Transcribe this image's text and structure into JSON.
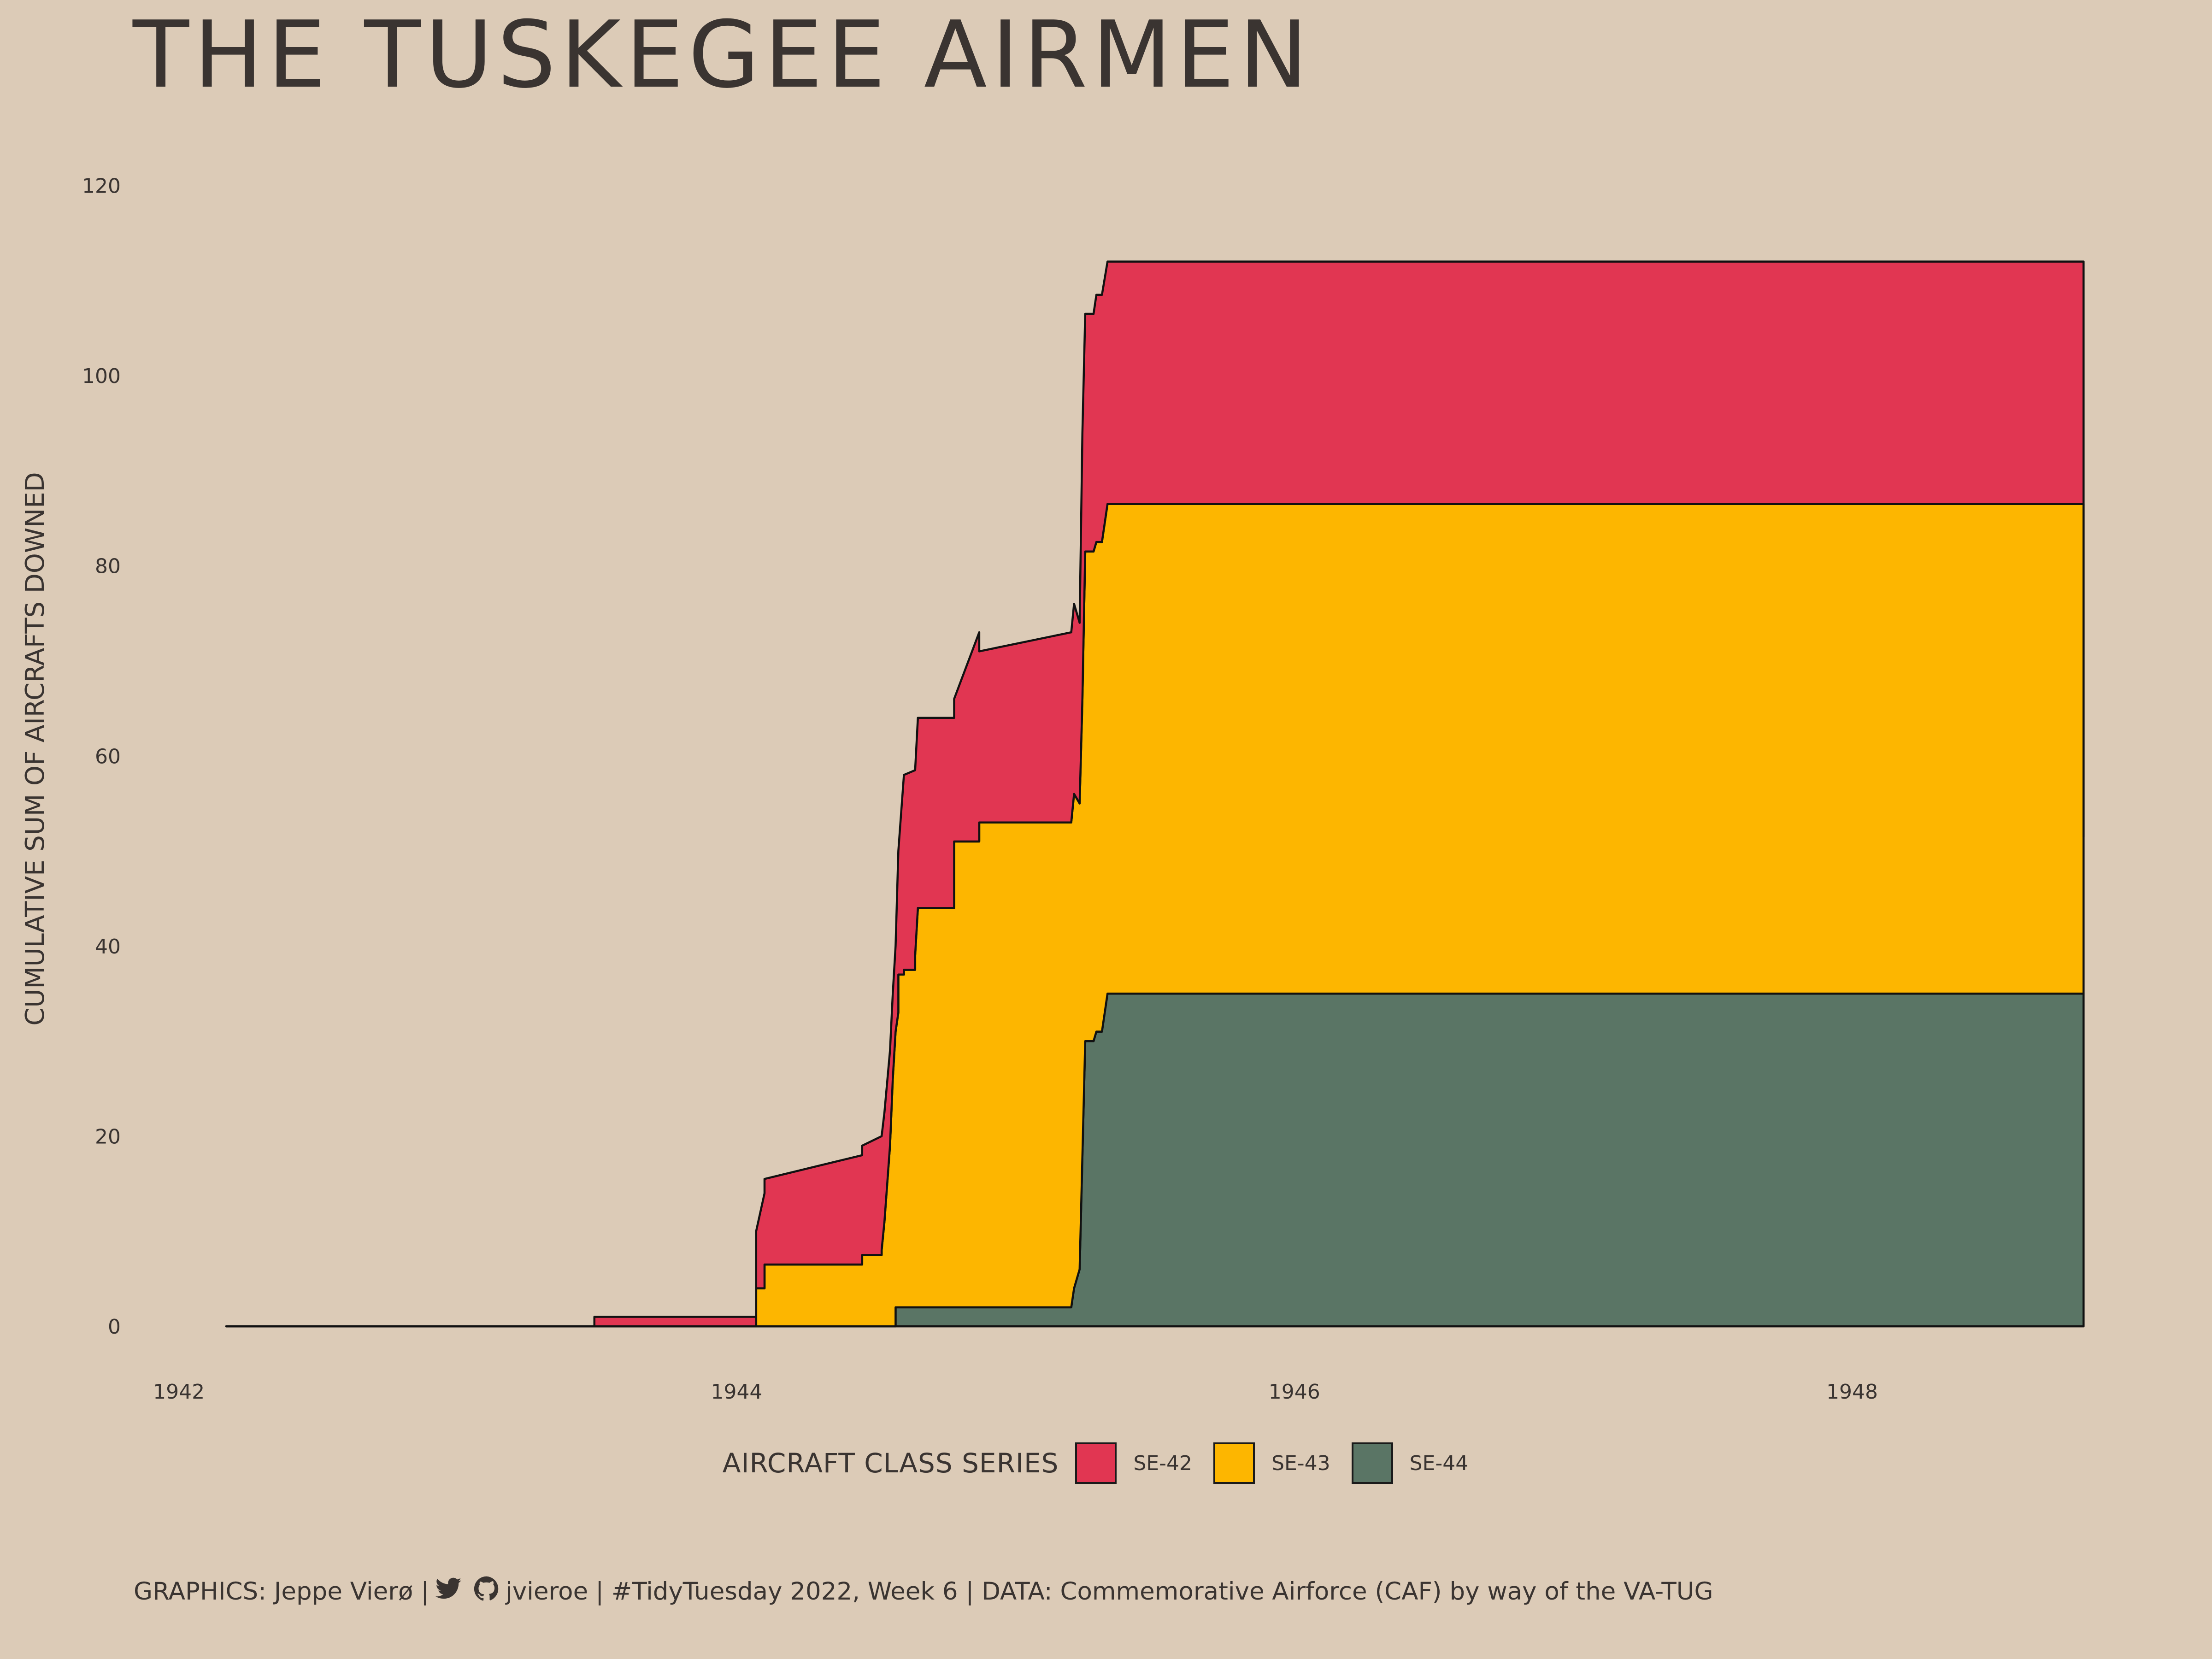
{
  "title": "THE TUSKEGEE AIRMEN",
  "chart_data": {
    "type": "area",
    "stacked": true,
    "step": true,
    "ylabel": "CUMULATIVE SUM OF AIRCRAFTS DOWNED",
    "xlabel": "",
    "xlim": [
      1941.97,
      1948.96
    ],
    "ylim": [
      -3,
      124
    ],
    "x_ticks": [
      1942,
      1944,
      1946,
      1948
    ],
    "y_ticks": [
      0,
      20,
      40,
      60,
      80,
      100,
      120
    ],
    "grid": false,
    "legend_position": "bottom",
    "legend_title": "AIRCRAFT CLASS SERIES",
    "series": [
      {
        "name": "SE-44",
        "color": "#5A7565",
        "points": [
          [
            1942.17,
            0
          ],
          [
            1944.57,
            0
          ],
          [
            1944.57,
            2
          ],
          [
            1944.58,
            2
          ],
          [
            1945.2,
            2
          ],
          [
            1945.21,
            4
          ],
          [
            1945.22,
            5
          ],
          [
            1945.23,
            6
          ],
          [
            1945.25,
            30
          ],
          [
            1945.28,
            30
          ],
          [
            1945.29,
            31
          ],
          [
            1945.31,
            31
          ],
          [
            1945.33,
            35
          ],
          [
            1948.83,
            35
          ]
        ]
      },
      {
        "name": "SE-43",
        "color": "#FDB600",
        "points": [
          [
            1942.17,
            0
          ],
          [
            1944.07,
            0
          ],
          [
            1944.07,
            4
          ],
          [
            1944.1,
            4
          ],
          [
            1944.1,
            6.5
          ],
          [
            1944.45,
            6.5
          ],
          [
            1944.45,
            7.5
          ],
          [
            1944.52,
            7.5
          ],
          [
            1944.52,
            8
          ],
          [
            1944.53,
            11
          ],
          [
            1944.55,
            19
          ],
          [
            1944.56,
            26
          ],
          [
            1944.57,
            31
          ],
          [
            1944.58,
            31
          ],
          [
            1944.58,
            35
          ],
          [
            1944.6,
            35
          ],
          [
            1944.6,
            35.5
          ],
          [
            1944.64,
            35.5
          ],
          [
            1944.64,
            37
          ],
          [
            1944.65,
            42
          ],
          [
            1944.78,
            42
          ],
          [
            1944.78,
            49
          ],
          [
            1944.87,
            49
          ],
          [
            1944.87,
            51
          ],
          [
            1945.2,
            51
          ],
          [
            1945.21,
            52
          ],
          [
            1945.23,
            49
          ],
          [
            1945.24,
            48
          ],
          [
            1945.25,
            51.5
          ],
          [
            1945.28,
            51.5
          ],
          [
            1945.29,
            51.5
          ],
          [
            1945.31,
            51.5
          ],
          [
            1945.33,
            51.5
          ],
          [
            1948.83,
            51.5
          ],
          [
            1948.83,
            16.5
          ]
        ]
      },
      {
        "name": "SE-42",
        "color": "#E13652",
        "points": [
          [
            1942.17,
            0
          ],
          [
            1943.49,
            0
          ],
          [
            1943.49,
            1
          ],
          [
            1944.07,
            1
          ],
          [
            1944.07,
            10
          ],
          [
            1944.1,
            10
          ],
          [
            1944.1,
            11.5
          ],
          [
            1944.45,
            11.5
          ],
          [
            1944.45,
            12.5
          ],
          [
            1944.52,
            12.5
          ],
          [
            1944.53,
            11.5
          ],
          [
            1944.55,
            10
          ],
          [
            1944.56,
            9
          ],
          [
            1944.57,
            9
          ],
          [
            1944.58,
            17
          ],
          [
            1944.6,
            21
          ],
          [
            1944.64,
            21
          ],
          [
            1944.64,
            21
          ],
          [
            1944.65,
            20
          ],
          [
            1944.78,
            20
          ],
          [
            1944.78,
            22
          ],
          [
            1944.87,
            22
          ],
          [
            1944.87,
            20
          ],
          [
            1945.2,
            20
          ],
          [
            1945.21,
            20
          ],
          [
            1945.23,
            19
          ],
          [
            1945.24,
            28
          ],
          [
            1945.25,
            25
          ],
          [
            1945.28,
            25
          ],
          [
            1945.29,
            26
          ],
          [
            1945.31,
            26
          ],
          [
            1945.33,
            25.5
          ],
          [
            1948.83,
            25.5
          ]
        ]
      }
    ]
  },
  "caption": {
    "prefix": "GRAPHICS: Jeppe Vierø |",
    "handle": "jvieroe",
    "suffix": "| #TidyTuesday 2022, Week 6 | DATA: Commemorative Airforce (CAF) by way of the VA-TUG",
    "icons": [
      "twitter-icon",
      "github-icon"
    ]
  }
}
